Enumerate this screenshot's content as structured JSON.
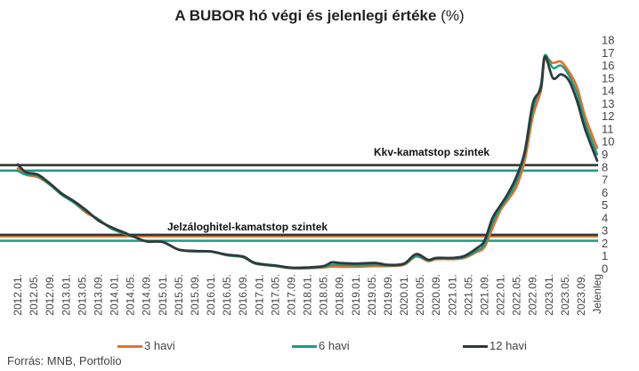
{
  "title": {
    "main": "A BUBOR hó végi és jelenlegi értéke",
    "unit": "(%)"
  },
  "source": "Forrás: MNB, Portfolio",
  "colors": {
    "s3": "#e8702a",
    "s6": "#1a9e84",
    "s12": "#2f3a3d",
    "ref": "#2f3a3d"
  },
  "chart_data": {
    "type": "line",
    "title": "A BUBOR hó végi és jelenlegi értéke (%)",
    "xlabel": "",
    "ylabel": "",
    "ylim": [
      0,
      18
    ],
    "yticks": [
      0,
      1,
      2,
      3,
      4,
      5,
      6,
      7,
      8,
      9,
      10,
      11,
      12,
      13,
      14,
      15,
      16,
      17,
      18
    ],
    "y_axis_position": "right",
    "grid": false,
    "legend_position": "bottom",
    "x_tick_labels": [
      "2012.01.",
      "2012.05.",
      "2012.09.",
      "2013.01.",
      "2013.05.",
      "2013.09.",
      "2014.01.",
      "2014.05.",
      "2014.09.",
      "2015.01.",
      "2015.05.",
      "2015.09.",
      "2016.01.",
      "2016.05.",
      "2016.09.",
      "2017.01.",
      "2017.05.",
      "2017.09.",
      "2018.01.",
      "2018.05.",
      "2018.09.",
      "2019.01.",
      "2019.05.",
      "2019.09.",
      "2020.01.",
      "2020.05.",
      "2020.09.",
      "2021.01.",
      "2021.05.",
      "2021.09.",
      "2022.01.",
      "2022.05.",
      "2022.09.",
      "2023.01.",
      "2023.05.",
      "2023.09.",
      "Jelenleg"
    ],
    "annotations": [
      {
        "text": "Kkv-kamatstop  szintek"
      },
      {
        "text": "Jelzáloghitel-kamatstop  szintek"
      }
    ],
    "reference_lines": [
      {
        "label": "Kkv-kamatstop  szintek",
        "series": "3 havi",
        "y": 8.16
      },
      {
        "label": "Kkv-kamatstop  szintek",
        "series": "6 havi",
        "y": 7.72
      },
      {
        "label": "Kkv-kamatstop  szintek",
        "series": "12 havi",
        "y": 8.15
      },
      {
        "label": "Jelzáloghitel-kamatstop  szintek",
        "series": "3 havi",
        "y": 2.55
      },
      {
        "label": "Jelzáloghitel-kamatstop  szintek",
        "series": "6 havi",
        "y": 2.2
      },
      {
        "label": "Jelzáloghitel-kamatstop  szintek",
        "series": "12 havi",
        "y": 2.67
      }
    ],
    "series": [
      {
        "name": "3 havi",
        "knots": [
          {
            "x": "2012.01.",
            "y": 7.9
          },
          {
            "x": "2012.03.",
            "y": 7.4
          },
          {
            "x": "2012.06.",
            "y": 7.2
          },
          {
            "x": "2012.09.",
            "y": 6.6
          },
          {
            "x": "2012.12.",
            "y": 5.8
          },
          {
            "x": "2013.03.",
            "y": 5.2
          },
          {
            "x": "2013.06.",
            "y": 4.4
          },
          {
            "x": "2013.09.",
            "y": 3.9
          },
          {
            "x": "2013.12.",
            "y": 3.2
          },
          {
            "x": "2014.03.",
            "y": 2.8
          },
          {
            "x": "2014.06.",
            "y": 2.5
          },
          {
            "x": "2014.09.",
            "y": 2.15
          },
          {
            "x": "2015.01.",
            "y": 2.1
          },
          {
            "x": "2015.05.",
            "y": 1.5
          },
          {
            "x": "2015.09.",
            "y": 1.35
          },
          {
            "x": "2016.01.",
            "y": 1.35
          },
          {
            "x": "2016.05.",
            "y": 1.05
          },
          {
            "x": "2016.09.",
            "y": 0.9
          },
          {
            "x": "2016.12.",
            "y": 0.4
          },
          {
            "x": "2017.05.",
            "y": 0.2
          },
          {
            "x": "2017.09.",
            "y": 0.03
          },
          {
            "x": "2018.01.",
            "y": 0.03
          },
          {
            "x": "2018.05.",
            "y": 0.1
          },
          {
            "x": "2018.07.",
            "y": 0.16
          },
          {
            "x": "2018.09.",
            "y": 0.15
          },
          {
            "x": "2019.01.",
            "y": 0.15
          },
          {
            "x": "2019.06.",
            "y": 0.2
          },
          {
            "x": "2019.09.",
            "y": 0.2
          },
          {
            "x": "2020.01.",
            "y": 0.3
          },
          {
            "x": "2020.04.",
            "y": 0.95
          },
          {
            "x": "2020.07.",
            "y": 0.6
          },
          {
            "x": "2020.09.",
            "y": 0.75
          },
          {
            "x": "2021.01.",
            "y": 0.75
          },
          {
            "x": "2021.04.",
            "y": 0.85
          },
          {
            "x": "2021.07.",
            "y": 1.3
          },
          {
            "x": "2021.09.",
            "y": 1.7
          },
          {
            "x": "2021.11.",
            "y": 3.2
          },
          {
            "x": "2022.01.",
            "y": 4.6
          },
          {
            "x": "2022.03.",
            "y": 5.5
          },
          {
            "x": "2022.05.",
            "y": 6.5
          },
          {
            "x": "2022.07.",
            "y": 8.5
          },
          {
            "x": "2022.09.",
            "y": 12.0
          },
          {
            "x": "2022.11.",
            "y": 14.0
          },
          {
            "x": "2022.12.",
            "y": 16.5
          },
          {
            "x": "2023.02.",
            "y": 16.2
          },
          {
            "x": "2023.04.",
            "y": 16.3
          },
          {
            "x": "2023.06.",
            "y": 15.5
          },
          {
            "x": "2023.08.",
            "y": 14.3
          },
          {
            "x": "2023.10.",
            "y": 12.0
          },
          {
            "x": "Jelenleg",
            "y": 9.5
          }
        ]
      },
      {
        "name": "6 havi",
        "knots": [
          {
            "x": "2012.01.",
            "y": 7.7
          },
          {
            "x": "2012.03.",
            "y": 7.4
          },
          {
            "x": "2012.06.",
            "y": 7.3
          },
          {
            "x": "2012.09.",
            "y": 6.6
          },
          {
            "x": "2012.12.",
            "y": 5.8
          },
          {
            "x": "2013.03.",
            "y": 5.2
          },
          {
            "x": "2013.06.",
            "y": 4.5
          },
          {
            "x": "2013.09.",
            "y": 3.9
          },
          {
            "x": "2013.12.",
            "y": 3.2
          },
          {
            "x": "2014.03.",
            "y": 2.8
          },
          {
            "x": "2014.06.",
            "y": 2.5
          },
          {
            "x": "2014.09.",
            "y": 2.15
          },
          {
            "x": "2015.01.",
            "y": 2.1
          },
          {
            "x": "2015.05.",
            "y": 1.5
          },
          {
            "x": "2015.09.",
            "y": 1.35
          },
          {
            "x": "2016.01.",
            "y": 1.35
          },
          {
            "x": "2016.05.",
            "y": 1.05
          },
          {
            "x": "2016.09.",
            "y": 0.9
          },
          {
            "x": "2016.12.",
            "y": 0.4
          },
          {
            "x": "2017.05.",
            "y": 0.2
          },
          {
            "x": "2017.09.",
            "y": 0.05
          },
          {
            "x": "2018.01.",
            "y": 0.05
          },
          {
            "x": "2018.05.",
            "y": 0.15
          },
          {
            "x": "2018.07.",
            "y": 0.3
          },
          {
            "x": "2018.09.",
            "y": 0.3
          },
          {
            "x": "2019.01.",
            "y": 0.25
          },
          {
            "x": "2019.06.",
            "y": 0.3
          },
          {
            "x": "2019.09.",
            "y": 0.25
          },
          {
            "x": "2020.01.",
            "y": 0.35
          },
          {
            "x": "2020.04.",
            "y": 1.0
          },
          {
            "x": "2020.07.",
            "y": 0.65
          },
          {
            "x": "2020.09.",
            "y": 0.8
          },
          {
            "x": "2021.01.",
            "y": 0.8
          },
          {
            "x": "2021.04.",
            "y": 0.9
          },
          {
            "x": "2021.07.",
            "y": 1.4
          },
          {
            "x": "2021.09.",
            "y": 1.9
          },
          {
            "x": "2021.11.",
            "y": 3.6
          },
          {
            "x": "2022.01.",
            "y": 4.8
          },
          {
            "x": "2022.03.",
            "y": 5.7
          },
          {
            "x": "2022.05.",
            "y": 6.9
          },
          {
            "x": "2022.07.",
            "y": 9.0
          },
          {
            "x": "2022.09.",
            "y": 12.5
          },
          {
            "x": "2022.11.",
            "y": 14.5
          },
          {
            "x": "2022.12.",
            "y": 16.8
          },
          {
            "x": "2023.02.",
            "y": 15.8
          },
          {
            "x": "2023.04.",
            "y": 16.0
          },
          {
            "x": "2023.06.",
            "y": 15.2
          },
          {
            "x": "2023.08.",
            "y": 13.8
          },
          {
            "x": "2023.10.",
            "y": 11.5
          },
          {
            "x": "Jelenleg",
            "y": 9.0
          }
        ]
      },
      {
        "name": "12 havi",
        "knots": [
          {
            "x": "2012.01.",
            "y": 8.2
          },
          {
            "x": "2012.03.",
            "y": 7.6
          },
          {
            "x": "2012.06.",
            "y": 7.4
          },
          {
            "x": "2012.09.",
            "y": 6.7
          },
          {
            "x": "2012.12.",
            "y": 5.9
          },
          {
            "x": "2013.03.",
            "y": 5.3
          },
          {
            "x": "2013.06.",
            "y": 4.6
          },
          {
            "x": "2013.09.",
            "y": 3.8
          },
          {
            "x": "2013.12.",
            "y": 3.3
          },
          {
            "x": "2014.03.",
            "y": 2.9
          },
          {
            "x": "2014.06.",
            "y": 2.5
          },
          {
            "x": "2014.09.",
            "y": 2.15
          },
          {
            "x": "2015.01.",
            "y": 2.1
          },
          {
            "x": "2015.05.",
            "y": 1.5
          },
          {
            "x": "2015.09.",
            "y": 1.4
          },
          {
            "x": "2016.01.",
            "y": 1.35
          },
          {
            "x": "2016.05.",
            "y": 1.1
          },
          {
            "x": "2016.09.",
            "y": 0.95
          },
          {
            "x": "2016.12.",
            "y": 0.45
          },
          {
            "x": "2017.05.",
            "y": 0.25
          },
          {
            "x": "2017.09.",
            "y": 0.08
          },
          {
            "x": "2018.01.",
            "y": 0.1
          },
          {
            "x": "2018.05.",
            "y": 0.2
          },
          {
            "x": "2018.07.",
            "y": 0.5
          },
          {
            "x": "2018.09.",
            "y": 0.45
          },
          {
            "x": "2019.01.",
            "y": 0.4
          },
          {
            "x": "2019.06.",
            "y": 0.45
          },
          {
            "x": "2019.09.",
            "y": 0.3
          },
          {
            "x": "2020.01.",
            "y": 0.4
          },
          {
            "x": "2020.04.",
            "y": 1.15
          },
          {
            "x": "2020.07.",
            "y": 0.7
          },
          {
            "x": "2020.09.",
            "y": 0.85
          },
          {
            "x": "2021.01.",
            "y": 0.85
          },
          {
            "x": "2021.04.",
            "y": 1.0
          },
          {
            "x": "2021.07.",
            "y": 1.6
          },
          {
            "x": "2021.09.",
            "y": 2.2
          },
          {
            "x": "2021.11.",
            "y": 4.0
          },
          {
            "x": "2022.01.",
            "y": 5.0
          },
          {
            "x": "2022.03.",
            "y": 6.0
          },
          {
            "x": "2022.05.",
            "y": 7.3
          },
          {
            "x": "2022.07.",
            "y": 9.2
          },
          {
            "x": "2022.09.",
            "y": 13.0
          },
          {
            "x": "2022.11.",
            "y": 14.2
          },
          {
            "x": "2022.12.",
            "y": 16.7
          },
          {
            "x": "2023.02.",
            "y": 15.0
          },
          {
            "x": "2023.04.",
            "y": 15.3
          },
          {
            "x": "2023.06.",
            "y": 14.8
          },
          {
            "x": "2023.08.",
            "y": 13.2
          },
          {
            "x": "2023.10.",
            "y": 11.0
          },
          {
            "x": "Jelenleg",
            "y": 8.5
          }
        ]
      }
    ]
  }
}
